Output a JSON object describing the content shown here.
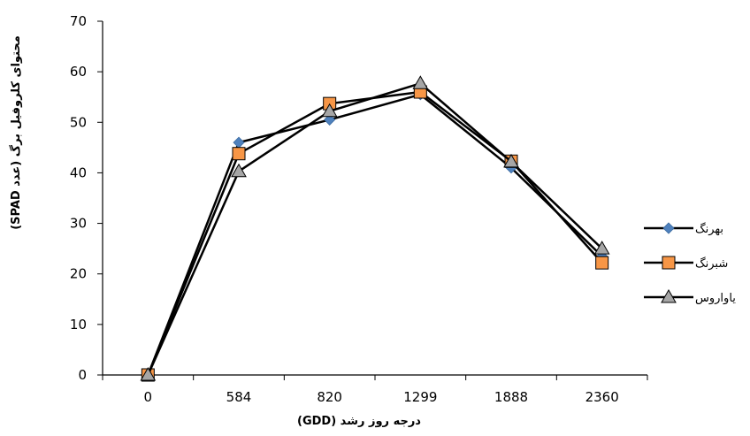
{
  "chart_data": {
    "type": "line",
    "title": "",
    "xlabel": "درجه روز رشد (GDD)",
    "ylabel": "محتوای کلروفیل برگ (عدد SPAD)",
    "categories": [
      "0",
      "584",
      "820",
      "1299",
      "1888",
      "2360"
    ],
    "ylim": [
      0,
      70
    ],
    "yticks": [
      0,
      10,
      20,
      30,
      40,
      50,
      60,
      70
    ],
    "grid": false,
    "legend_position": "right",
    "series": [
      {
        "name": "بهرنگ",
        "marker": "diamond",
        "marker_color": "#4f81bd",
        "line_color": "#000000",
        "values": [
          0,
          46,
          50.5,
          55.5,
          41,
          23.5
        ]
      },
      {
        "name": "شبرنگ",
        "marker": "square",
        "marker_color": "#f79646",
        "line_color": "#000000",
        "values": [
          0,
          43.8,
          53.7,
          56,
          42.3,
          22.2
        ]
      },
      {
        "name": "یاواروس",
        "marker": "triangle",
        "marker_color": "#a6a6a6",
        "line_color": "#000000",
        "values": [
          0,
          40.3,
          52.2,
          57.7,
          42.2,
          25
        ]
      }
    ]
  }
}
